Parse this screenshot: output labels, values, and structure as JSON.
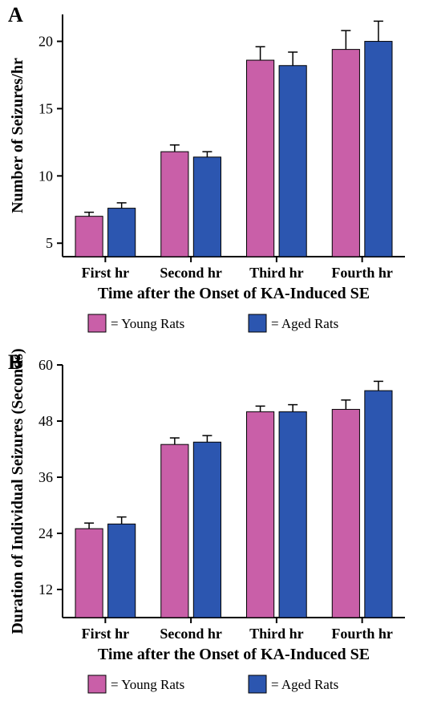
{
  "colors": {
    "young": "#c95fa8",
    "aged": "#2c56b0",
    "background": "#ffffff",
    "ink": "#000000"
  },
  "typography": {
    "family": "Times New Roman",
    "panel_label_size": 26,
    "axis_title_size": 20,
    "tick_label_size": 18,
    "legend_size": 17
  },
  "panels": [
    {
      "id": "A",
      "panel_label": "A",
      "type": "bar",
      "categories": [
        "First hr",
        "Second hr",
        "Third hr",
        "Fourth hr"
      ],
      "series": [
        {
          "name": "Young Rats",
          "color": "#c95fa8",
          "values": [
            7.0,
            11.8,
            18.6,
            19.4
          ],
          "errors": [
            0.3,
            0.5,
            1.0,
            1.4
          ]
        },
        {
          "name": "Aged Rats",
          "color": "#2c56b0",
          "values": [
            7.6,
            11.4,
            18.2,
            20.0
          ],
          "errors": [
            0.4,
            0.4,
            1.0,
            1.5
          ]
        }
      ],
      "y_axis": {
        "label": "Number of Seizures/hr",
        "ylim": [
          4,
          22
        ],
        "ticks": [
          5,
          10,
          15,
          20
        ]
      },
      "x_axis": {
        "label": "Time after the Onset of KA-Induced SE"
      },
      "bar_width": 0.32,
      "bar_gap": 0.06,
      "legend": [
        {
          "swatch": "#c95fa8",
          "text": "= Young Rats"
        },
        {
          "swatch": "#2c56b0",
          "text": "= Aged Rats"
        }
      ]
    },
    {
      "id": "B",
      "panel_label": "B",
      "type": "bar",
      "categories": [
        "First hr",
        "Second hr",
        "Third hr",
        "Fourth hr"
      ],
      "series": [
        {
          "name": "Young Rats",
          "color": "#c95fa8",
          "values": [
            25,
            43,
            50,
            50.5
          ],
          "errors": [
            1.2,
            1.4,
            1.2,
            2.0
          ]
        },
        {
          "name": "Aged Rats",
          "color": "#2c56b0",
          "values": [
            26,
            43.5,
            50,
            54.5
          ],
          "errors": [
            1.5,
            1.4,
            1.5,
            2.0
          ]
        }
      ],
      "y_axis": {
        "label": "Duration of Individual Seizures (Seconds)",
        "ylim": [
          6,
          60
        ],
        "ticks": [
          12,
          24,
          36,
          48,
          60
        ]
      },
      "x_axis": {
        "label": "Time after the Onset of KA-Induced SE"
      },
      "bar_width": 0.32,
      "bar_gap": 0.06,
      "legend": [
        {
          "swatch": "#c95fa8",
          "text": "= Young Rats"
        },
        {
          "swatch": "#2c56b0",
          "text": "= Aged Rats"
        }
      ]
    }
  ]
}
